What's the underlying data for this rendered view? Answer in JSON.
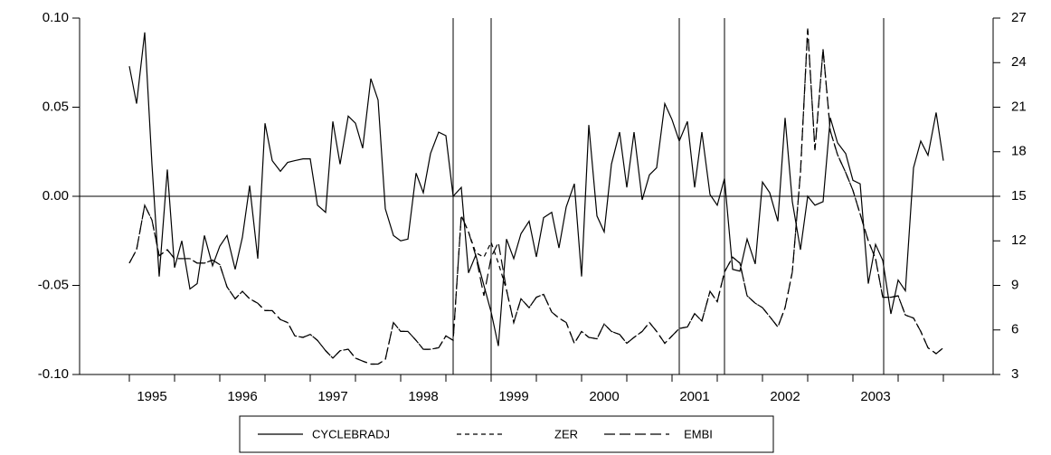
{
  "chart_data": {
    "type": "line",
    "x": [
      1995.0,
      1995.08,
      1995.17,
      1995.25,
      1995.33,
      1995.42,
      1995.5,
      1995.58,
      1995.67,
      1995.75,
      1995.83,
      1995.92,
      1996.0,
      1996.08,
      1996.17,
      1996.25,
      1996.33,
      1996.42,
      1996.5,
      1996.58,
      1996.67,
      1996.75,
      1996.83,
      1996.92,
      1997.0,
      1997.08,
      1997.17,
      1997.25,
      1997.33,
      1997.42,
      1997.5,
      1997.58,
      1997.67,
      1997.75,
      1997.83,
      1997.92,
      1998.0,
      1998.08,
      1998.17,
      1998.25,
      1998.33,
      1998.42,
      1998.5,
      1998.58,
      1998.67,
      1998.75,
      1998.83,
      1998.92,
      1999.0,
      1999.08,
      1999.17,
      1999.25,
      1999.33,
      1999.42,
      1999.5,
      1999.58,
      1999.67,
      1999.75,
      1999.83,
      1999.92,
      2000.0,
      2000.08,
      2000.17,
      2000.25,
      2000.33,
      2000.42,
      2000.5,
      2000.58,
      2000.67,
      2000.75,
      2000.83,
      2000.92,
      2001.0,
      2001.08,
      2001.17,
      2001.25,
      2001.33,
      2001.42,
      2001.5,
      2001.58,
      2001.67,
      2001.75,
      2001.83,
      2001.92,
      2002.0,
      2002.08,
      2002.17,
      2002.25,
      2002.33,
      2002.42,
      2002.5,
      2002.58,
      2002.67,
      2002.75,
      2002.83,
      2002.92,
      2003.0,
      2003.08,
      2003.17,
      2003.25,
      2003.33,
      2003.42,
      2003.5,
      2003.58,
      2003.67,
      2003.75,
      2003.83,
      2003.92,
      2004.0
    ],
    "series": [
      {
        "name": "CYCLEBRADJ",
        "color": "#000000",
        "dash": "none",
        "axis": "y",
        "values": [
          0.073,
          0.052,
          0.092,
          0.018,
          -0.045,
          0.015,
          -0.04,
          -0.025,
          -0.052,
          -0.049,
          -0.022,
          -0.039,
          -0.028,
          -0.022,
          -0.041,
          -0.023,
          0.006,
          -0.035,
          0.041,
          0.02,
          0.014,
          0.019,
          0.02,
          0.021,
          0.021,
          -0.005,
          -0.009,
          0.042,
          0.018,
          0.045,
          0.041,
          0.027,
          0.066,
          0.054,
          -0.007,
          -0.022,
          -0.025,
          -0.024,
          0.013,
          0.002,
          0.024,
          0.036,
          0.034,
          0.0,
          0.005,
          -0.043,
          -0.033,
          -0.05,
          -0.065,
          -0.084,
          -0.024,
          -0.035,
          -0.021,
          -0.014,
          -0.034,
          -0.012,
          -0.009,
          -0.029,
          -0.006,
          0.007,
          -0.045,
          0.04,
          -0.011,
          -0.02,
          0.018,
          0.036,
          0.005,
          0.036,
          -0.002,
          0.012,
          0.016,
          0.052,
          0.043,
          0.031,
          0.042,
          0.005,
          0.036,
          0.001,
          -0.005,
          0.01,
          -0.041,
          -0.042,
          -0.024,
          -0.038,
          0.008,
          0.002,
          -0.014,
          0.044,
          -0.003,
          -0.03,
          0.0,
          -0.005,
          -0.003,
          0.044,
          0.03,
          0.024,
          0.009,
          0.007,
          -0.049,
          -0.027,
          -0.036,
          -0.066,
          -0.047,
          -0.053,
          0.016,
          0.031,
          0.023,
          0.047,
          0.02
        ]
      },
      {
        "name": "ZER",
        "color": "#000000",
        "dash": "5,4",
        "axis": "y2",
        "values": [
          10.5,
          11.4,
          14.4,
          13.4,
          11.0,
          11.4,
          10.8,
          10.8,
          10.8,
          10.5,
          10.5,
          10.7,
          10.4,
          8.9,
          8.1,
          8.6,
          8.1,
          7.8,
          7.3,
          7.3,
          6.7,
          6.5,
          5.6,
          5.5,
          5.7,
          5.3,
          4.6,
          4.1,
          4.6,
          4.7,
          4.1,
          3.9,
          3.7,
          3.7,
          4.0,
          6.5,
          5.9,
          5.9,
          5.3,
          4.7,
          4.7,
          4.8,
          5.6,
          5.3,
          13.7,
          12.6,
          11.2,
          10.9,
          11.9,
          10.5,
          8.7,
          6.5,
          8.1,
          7.5,
          8.2,
          8.4,
          7.2,
          6.8,
          6.5,
          5.1,
          5.9,
          5.5,
          5.4,
          6.4,
          5.9,
          5.7,
          5.1,
          5.5,
          5.9,
          6.5,
          5.9,
          5.1,
          5.6,
          6.1,
          6.2,
          7.1,
          6.6,
          8.6,
          7.9,
          9.9,
          10.9,
          10.5,
          8.3,
          7.8,
          7.5,
          6.9,
          6.2,
          7.5,
          9.9,
          16.6,
          26.3,
          18.1,
          24.9,
          19.4,
          17.8,
          16.6,
          15.4,
          13.8,
          12.0,
          10.8,
          8.2,
          8.2,
          8.3,
          7.0,
          6.8,
          5.9,
          4.8,
          4.4,
          4.8
        ]
      },
      {
        "name": "EMBI",
        "color": "#000000",
        "dash": "12,5",
        "axis": "y2",
        "values": [
          10.5,
          11.4,
          14.4,
          13.4,
          11.0,
          11.4,
          10.8,
          10.8,
          10.8,
          10.5,
          10.5,
          10.7,
          10.4,
          8.9,
          8.1,
          8.6,
          8.1,
          7.8,
          7.3,
          7.3,
          6.7,
          6.5,
          5.6,
          5.5,
          5.7,
          5.3,
          4.6,
          4.1,
          4.6,
          4.7,
          4.1,
          3.9,
          3.7,
          3.7,
          4.0,
          6.5,
          5.9,
          5.9,
          5.3,
          4.7,
          4.7,
          4.8,
          5.6,
          5.3,
          13.7,
          12.6,
          11.0,
          8.3,
          10.9,
          11.9,
          8.7,
          6.5,
          8.1,
          7.5,
          8.2,
          8.4,
          7.2,
          6.8,
          6.5,
          5.1,
          5.9,
          5.5,
          5.4,
          6.4,
          5.9,
          5.7,
          5.1,
          5.5,
          5.9,
          6.5,
          5.9,
          5.1,
          5.6,
          6.1,
          6.2,
          7.1,
          6.6,
          8.6,
          7.9,
          9.9,
          10.9,
          10.5,
          8.3,
          7.8,
          7.5,
          6.9,
          6.2,
          7.5,
          9.9,
          16.6,
          26.3,
          18.1,
          24.9,
          19.4,
          17.8,
          16.6,
          15.4,
          13.8,
          12.0,
          10.8,
          8.2,
          8.2,
          8.3,
          7.0,
          6.8,
          5.9,
          4.8,
          4.4,
          4.8
        ]
      }
    ],
    "xlim": [
      1994.45,
      2004.55
    ],
    "xticks": [
      1995,
      1996,
      1997,
      1998,
      1999,
      2000,
      2001,
      2002,
      2003
    ],
    "xminorticks": [
      1995.5,
      1996.5,
      1997.5,
      1998.5,
      1999.5,
      2000.5,
      2001.5,
      2002.5,
      2003.5,
      2004
    ],
    "ylim": [
      -0.1,
      0.1
    ],
    "yticks": [
      {
        "value": -0.1,
        "label": "-0.10"
      },
      -0.05,
      {
        "value": 0,
        "label": "0.00"
      },
      0.05,
      {
        "value": 0.1,
        "label": "0.10"
      }
    ],
    "y2lim": [
      3,
      27
    ],
    "y2ticks": [
      3,
      6,
      9,
      12,
      15,
      18,
      21,
      24,
      27
    ],
    "event_lines": [
      1998.58,
      1999.0,
      2001.08,
      2001.58,
      2003.34
    ],
    "zero_line": true,
    "legend": "bottom"
  }
}
